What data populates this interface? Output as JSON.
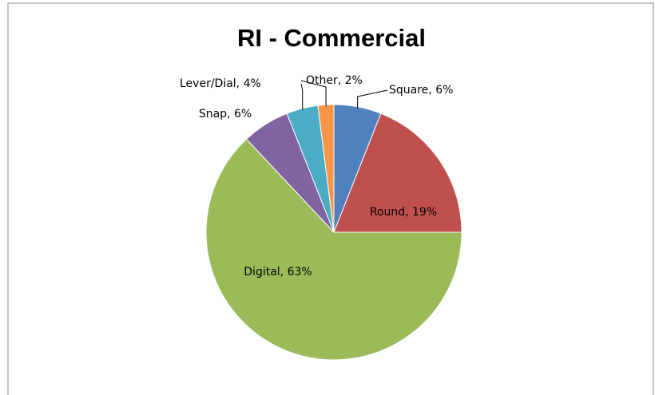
{
  "chart_data": {
    "type": "pie",
    "title": "RI - Commercial",
    "values": [
      6,
      19,
      63,
      6,
      4,
      2
    ],
    "value_labels": [
      "Square, 6%",
      "Round, 19%",
      "Digital, 63%",
      "Snap, 6%",
      "Lever/Dial, 4%",
      "Other, 2%"
    ],
    "colors": [
      "#4f81bd",
      "#c0504d",
      "#9bbb59",
      "#8064a2",
      "#4bacc6",
      "#f79646"
    ]
  }
}
